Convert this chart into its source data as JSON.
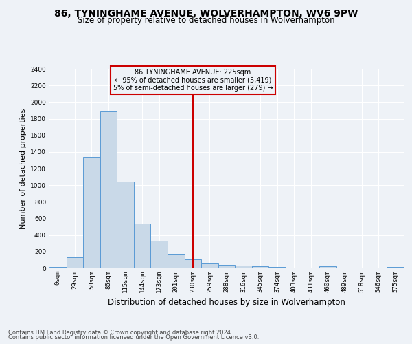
{
  "title": "86, TYNINGHAME AVENUE, WOLVERHAMPTON, WV6 9PW",
  "subtitle": "Size of property relative to detached houses in Wolverhampton",
  "xlabel": "Distribution of detached houses by size in Wolverhampton",
  "ylabel": "Number of detached properties",
  "categories": [
    "0sqm",
    "29sqm",
    "58sqm",
    "86sqm",
    "115sqm",
    "144sqm",
    "173sqm",
    "201sqm",
    "230sqm",
    "259sqm",
    "288sqm",
    "316sqm",
    "345sqm",
    "374sqm",
    "403sqm",
    "431sqm",
    "460sqm",
    "489sqm",
    "518sqm",
    "546sqm",
    "575sqm"
  ],
  "values": [
    20,
    130,
    1340,
    1890,
    1040,
    540,
    335,
    170,
    110,
    65,
    42,
    32,
    28,
    20,
    5,
    0,
    22,
    0,
    0,
    0,
    20
  ],
  "bar_color": "#c9d9e8",
  "bar_edge_color": "#5b9bd5",
  "vline_x": 8,
  "vline_color": "#cc0000",
  "annotation_text": "86 TYNINGHAME AVENUE: 225sqm\n← 95% of detached houses are smaller (5,419)\n5% of semi-detached houses are larger (279) →",
  "annotation_box_color": "#cc0000",
  "ylim": [
    0,
    2400
  ],
  "yticks": [
    0,
    200,
    400,
    600,
    800,
    1000,
    1200,
    1400,
    1600,
    1800,
    2000,
    2200,
    2400
  ],
  "footer_line1": "Contains HM Land Registry data © Crown copyright and database right 2024.",
  "footer_line2": "Contains public sector information licensed under the Open Government Licence v3.0.",
  "bg_color": "#eef2f7",
  "grid_color": "#ffffff",
  "title_fontsize": 10,
  "subtitle_fontsize": 8.5,
  "axis_label_fontsize": 8,
  "tick_fontsize": 6.5,
  "footer_fontsize": 6
}
